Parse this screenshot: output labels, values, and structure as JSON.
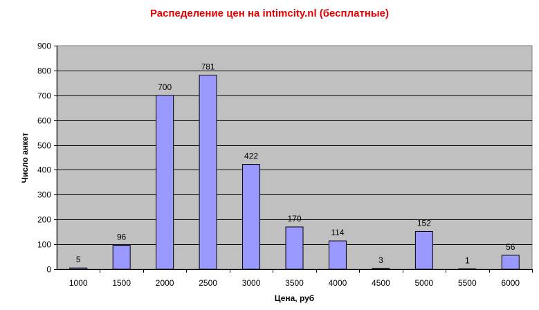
{
  "chart_data": {
    "type": "bar",
    "title": "Распеделение цен на intimcity.nl (бесплатные)",
    "xlabel": "Цена, руб",
    "ylabel": "Число анкет",
    "categories": [
      "1000",
      "1500",
      "2000",
      "2500",
      "3000",
      "3500",
      "4000",
      "4500",
      "5000",
      "5500",
      "6000"
    ],
    "values": [
      5,
      96,
      700,
      781,
      422,
      170,
      114,
      3,
      152,
      1,
      56
    ],
    "data_labels": [
      "5",
      "96",
      "700",
      "781",
      "422",
      "170",
      "114",
      "3",
      "152",
      "1",
      "56"
    ],
    "ylim": [
      0,
      900
    ],
    "yticks": [
      "0",
      "100",
      "200",
      "300",
      "400",
      "500",
      "600",
      "700",
      "800",
      "900"
    ],
    "grid": true,
    "colors": {
      "bar_fill": "#9999ff",
      "plot_bg": "#c0c0c0",
      "title": "#e60000"
    }
  }
}
